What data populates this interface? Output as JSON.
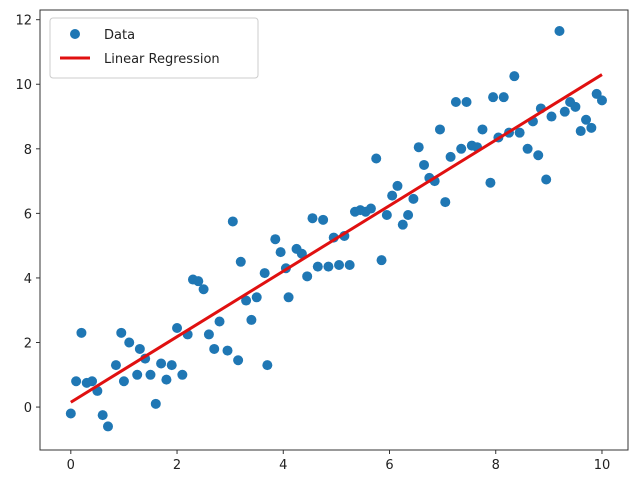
{
  "chart_data": {
    "type": "scatter",
    "title": "",
    "xlabel": "",
    "ylabel": "",
    "xlim": [
      -0.58,
      10.49
    ],
    "ylim": [
      -1.33,
      12.3
    ],
    "xticks": [
      0,
      2,
      4,
      6,
      8,
      10
    ],
    "yticks": [
      0,
      2,
      4,
      6,
      8,
      10,
      12
    ],
    "grid": false,
    "legend_placement": "top-left",
    "colors": {
      "data": "#1f77b4",
      "regression": "#e01010"
    },
    "series": [
      {
        "name": "Data",
        "type": "scatter",
        "points": [
          [
            0,
            -0.2
          ],
          [
            0.1,
            0.8
          ],
          [
            0.2,
            2.3
          ],
          [
            0.3,
            0.75
          ],
          [
            0.4,
            0.8
          ],
          [
            0.5,
            0.5
          ],
          [
            0.6,
            -0.25
          ],
          [
            0.7,
            -0.6
          ],
          [
            0.85,
            1.3
          ],
          [
            0.95,
            2.3
          ],
          [
            1.0,
            0.8
          ],
          [
            1.1,
            2.0
          ],
          [
            1.25,
            1.0
          ],
          [
            1.3,
            1.8
          ],
          [
            1.4,
            1.5
          ],
          [
            1.5,
            1.0
          ],
          [
            1.6,
            0.1
          ],
          [
            1.7,
            1.35
          ],
          [
            1.8,
            0.85
          ],
          [
            1.9,
            1.3
          ],
          [
            2.0,
            2.45
          ],
          [
            2.1,
            1.0
          ],
          [
            2.2,
            2.25
          ],
          [
            2.3,
            3.95
          ],
          [
            2.4,
            3.9
          ],
          [
            2.5,
            3.65
          ],
          [
            2.6,
            2.25
          ],
          [
            2.7,
            1.8
          ],
          [
            2.8,
            2.65
          ],
          [
            2.95,
            1.75
          ],
          [
            3.05,
            5.75
          ],
          [
            3.15,
            1.45
          ],
          [
            3.2,
            4.5
          ],
          [
            3.3,
            3.3
          ],
          [
            3.4,
            2.7
          ],
          [
            3.5,
            3.4
          ],
          [
            3.65,
            4.15
          ],
          [
            3.7,
            1.3
          ],
          [
            3.85,
            5.2
          ],
          [
            3.95,
            4.8
          ],
          [
            4.05,
            4.3
          ],
          [
            4.1,
            3.4
          ],
          [
            4.25,
            4.9
          ],
          [
            4.35,
            4.75
          ],
          [
            4.45,
            4.05
          ],
          [
            4.55,
            5.85
          ],
          [
            4.65,
            4.35
          ],
          [
            4.75,
            5.8
          ],
          [
            4.85,
            4.35
          ],
          [
            4.95,
            5.25
          ],
          [
            5.05,
            4.4
          ],
          [
            5.15,
            5.3
          ],
          [
            5.25,
            4.4
          ],
          [
            5.35,
            6.05
          ],
          [
            5.45,
            6.1
          ],
          [
            5.55,
            6.05
          ],
          [
            5.65,
            6.15
          ],
          [
            5.75,
            7.7
          ],
          [
            5.85,
            4.55
          ],
          [
            5.95,
            5.95
          ],
          [
            6.05,
            6.55
          ],
          [
            6.15,
            6.85
          ],
          [
            6.25,
            5.65
          ],
          [
            6.35,
            5.95
          ],
          [
            6.45,
            6.45
          ],
          [
            6.55,
            8.05
          ],
          [
            6.65,
            7.5
          ],
          [
            6.75,
            7.1
          ],
          [
            6.85,
            7.0
          ],
          [
            6.95,
            8.6
          ],
          [
            7.05,
            6.35
          ],
          [
            7.15,
            7.75
          ],
          [
            7.25,
            9.45
          ],
          [
            7.35,
            8.0
          ],
          [
            7.45,
            9.45
          ],
          [
            7.55,
            8.1
          ],
          [
            7.65,
            8.05
          ],
          [
            7.75,
            8.6
          ],
          [
            7.9,
            6.95
          ],
          [
            7.95,
            9.6
          ],
          [
            8.05,
            8.35
          ],
          [
            8.15,
            9.6
          ],
          [
            8.25,
            8.5
          ],
          [
            8.35,
            10.25
          ],
          [
            8.45,
            8.5
          ],
          [
            8.6,
            8.0
          ],
          [
            8.7,
            8.85
          ],
          [
            8.8,
            7.8
          ],
          [
            8.85,
            9.25
          ],
          [
            8.95,
            7.05
          ],
          [
            9.05,
            9.0
          ],
          [
            9.2,
            11.65
          ],
          [
            9.3,
            9.15
          ],
          [
            9.4,
            9.45
          ],
          [
            9.5,
            9.3
          ],
          [
            9.6,
            8.55
          ],
          [
            9.7,
            8.9
          ],
          [
            9.8,
            8.65
          ],
          [
            9.9,
            9.7
          ],
          [
            10.0,
            9.5
          ]
        ]
      },
      {
        "name": "Linear Regression",
        "type": "line",
        "points": [
          [
            0,
            0.15
          ],
          [
            10,
            10.3
          ]
        ]
      }
    ]
  }
}
